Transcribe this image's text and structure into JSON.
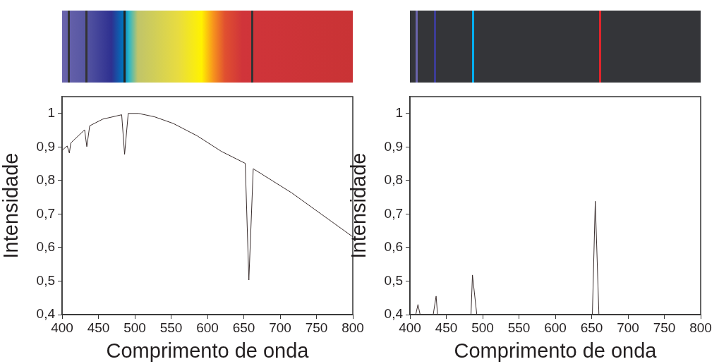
{
  "chart_data": [
    {
      "type": "line",
      "xlabel": "Comprimento de onda",
      "ylabel": "Intensidade",
      "xlim": [
        400,
        800
      ],
      "ylim": [
        0.4,
        1.05
      ],
      "xticks": [
        400,
        450,
        500,
        550,
        600,
        650,
        700,
        750,
        800
      ],
      "yticks": [
        {
          "value": 0.4,
          "label": "0,4"
        },
        {
          "value": 0.5,
          "label": "0,5"
        },
        {
          "value": 0.6,
          "label": "0,6"
        },
        {
          "value": 0.7,
          "label": "0,7"
        },
        {
          "value": 0.8,
          "label": "0,8"
        },
        {
          "value": 0.9,
          "label": "0,9"
        },
        1
      ],
      "grid": false,
      "legend": false,
      "marker": "none",
      "series": [
        {
          "color": "#3a2e2e",
          "x": [
            400,
            407,
            410,
            412,
            431,
            434,
            438,
            456,
            482,
            486,
            491,
            505,
            527,
            553,
            586,
            619,
            652,
            657,
            663,
            716,
            800
          ],
          "values": [
            0.89,
            0.903,
            0.882,
            0.912,
            0.951,
            0.901,
            0.963,
            0.983,
            0.996,
            0.878,
            1.0,
            1.0,
            0.99,
            0.97,
            0.933,
            0.887,
            0.851,
            0.503,
            0.835,
            0.763,
            0.632
          ]
        }
      ]
    },
    {
      "type": "line",
      "xlabel": "Comprimento de onda",
      "ylabel": "Intensidade",
      "xlim": [
        400,
        800
      ],
      "ylim": [
        0.4,
        1.05
      ],
      "xticks": [
        400,
        450,
        500,
        550,
        600,
        650,
        700,
        750,
        800
      ],
      "yticks": [
        {
          "value": 0.4,
          "label": "0,4"
        },
        {
          "value": 0.5,
          "label": "0,5"
        },
        {
          "value": 0.6,
          "label": "0,6"
        },
        {
          "value": 0.7,
          "label": "0,7"
        },
        {
          "value": 0.8,
          "label": "0,8"
        },
        {
          "value": 0.9,
          "label": "0,9"
        },
        1
      ],
      "grid": false,
      "legend": false,
      "marker": "none",
      "series": [
        {
          "color": "#3a2e2e",
          "x": [
            400,
            408,
            411,
            414,
            432,
            436,
            438,
            484,
            486,
            492,
            651,
            655,
            660,
            800
          ],
          "values": [
            0.4,
            0.4,
            0.43,
            0.4,
            0.4,
            0.455,
            0.4,
            0.4,
            0.518,
            0.4,
            0.4,
            0.738,
            0.4,
            0.4
          ]
        }
      ]
    }
  ]
}
